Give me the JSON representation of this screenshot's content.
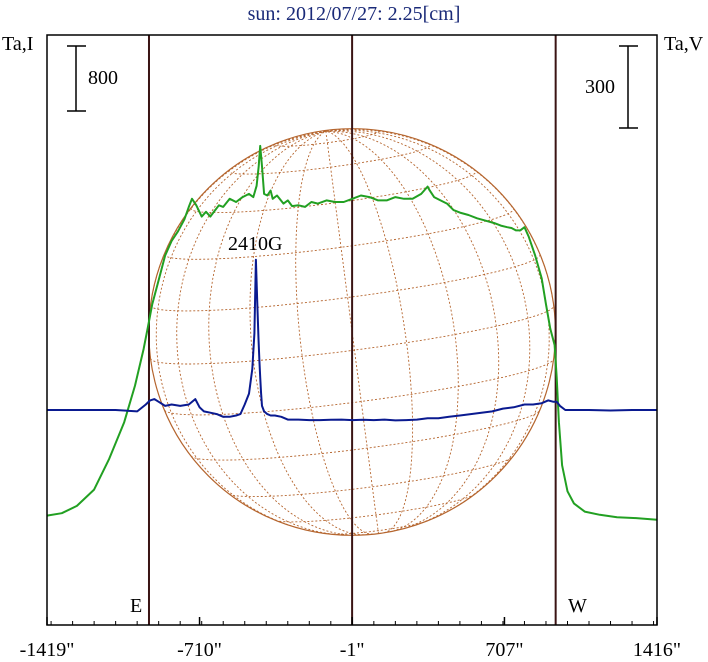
{
  "chart_data": {
    "type": "line",
    "title": "sun: 2012/07/27: 2.25[cm]",
    "left_axis_label": "Ta,I",
    "right_axis_label": "Ta,V",
    "xticks": [
      "-1419\"",
      "-710\"",
      "-1\"",
      "707\"",
      "1416\""
    ],
    "xtick_values": [
      -1419,
      -710,
      -1,
      707,
      1416
    ],
    "xlim": [
      -1419,
      1416
    ],
    "scale_bars": {
      "left": {
        "label": "800",
        "value": 800
      },
      "right": {
        "label": "300",
        "value": 300
      }
    },
    "limb_labels": {
      "east": "E",
      "west": "W"
    },
    "vertical_lines_x": [
      -945,
      -1,
      945
    ],
    "annotations": [
      {
        "text": "2410G",
        "x": -430
      }
    ],
    "disk": {
      "center_x": -1,
      "radius": 945,
      "grid": "dotted heliographic"
    },
    "series": [
      {
        "name": "I",
        "color": "#22a022",
        "x": [
          -1419,
          -1350,
          -1280,
          -1200,
          -1130,
          -1060,
          -1010,
          -970,
          -950,
          -930,
          -900,
          -870,
          -840,
          -810,
          -780,
          -760,
          -745,
          -725,
          -700,
          -680,
          -660,
          -640,
          -620,
          -600,
          -570,
          -540,
          -510,
          -480,
          -460,
          -445,
          -435,
          -428,
          -420,
          -410,
          -395,
          -380,
          -370,
          -350,
          -320,
          -300,
          -280,
          -250,
          -220,
          -190,
          -160,
          -120,
          -80,
          -40,
          0,
          40,
          80,
          120,
          160,
          200,
          240,
          280,
          320,
          350,
          360,
          380,
          410,
          440,
          470,
          500,
          540,
          580,
          620,
          660,
          690,
          720,
          740,
          760,
          780,
          800,
          820,
          850,
          880,
          900,
          920,
          940,
          950,
          960,
          975,
          1000,
          1030,
          1080,
          1150,
          1230,
          1320,
          1416
        ],
        "y": [
          -1300,
          -1270,
          -1180,
          -980,
          -600,
          -150,
          300,
          750,
          1020,
          1300,
          1600,
          1900,
          2080,
          2200,
          2350,
          2500,
          2600,
          2520,
          2380,
          2440,
          2380,
          2450,
          2520,
          2500,
          2600,
          2560,
          2620,
          2660,
          2620,
          2760,
          3000,
          3250,
          3000,
          2660,
          2640,
          2700,
          2600,
          2640,
          2540,
          2580,
          2510,
          2520,
          2500,
          2560,
          2540,
          2580,
          2560,
          2560,
          2600,
          2640,
          2620,
          2580,
          2580,
          2620,
          2600,
          2600,
          2660,
          2750,
          2700,
          2620,
          2580,
          2540,
          2460,
          2430,
          2400,
          2360,
          2330,
          2300,
          2270,
          2250,
          2240,
          2210,
          2210,
          2250,
          2130,
          1900,
          1620,
          1300,
          1000,
          800,
          400,
          -150,
          -680,
          -1000,
          -1150,
          -1250,
          -1290,
          -1320,
          -1330,
          -1350
        ]
      },
      {
        "name": "V",
        "color": "#0a1a90",
        "x": [
          -1419,
          -1200,
          -1100,
          -1000,
          -960,
          -940,
          -920,
          -900,
          -870,
          -840,
          -800,
          -760,
          -730,
          -710,
          -690,
          -660,
          -630,
          -600,
          -570,
          -540,
          -520,
          -500,
          -480,
          -465,
          -455,
          -448,
          -442,
          -436,
          -432,
          -428,
          -424,
          -420,
          -410,
          -395,
          -380,
          -360,
          -330,
          -300,
          -250,
          -200,
          -150,
          -100,
          -50,
          0,
          50,
          100,
          150,
          200,
          250,
          300,
          350,
          400,
          450,
          500,
          550,
          600,
          650,
          700,
          750,
          800,
          840,
          880,
          910,
          935,
          950,
          965,
          990,
          1040,
          1100,
          1200,
          1300,
          1416
        ],
        "y": [
          0,
          0,
          0,
          -5,
          20,
          35,
          40,
          30,
          15,
          20,
          15,
          20,
          40,
          10,
          -5,
          -10,
          -15,
          -25,
          -25,
          -20,
          -15,
          20,
          60,
          150,
          280,
          550,
          400,
          260,
          180,
          120,
          60,
          15,
          -5,
          -15,
          -20,
          -20,
          -25,
          -35,
          -35,
          -37,
          -37,
          -36,
          -35,
          -37,
          -36,
          -37,
          -35,
          -38,
          -37,
          -35,
          -30,
          -30,
          -25,
          -20,
          -15,
          -10,
          -5,
          5,
          10,
          20,
          20,
          25,
          35,
          30,
          30,
          15,
          0,
          0,
          0,
          -2,
          0,
          0
        ]
      }
    ]
  }
}
